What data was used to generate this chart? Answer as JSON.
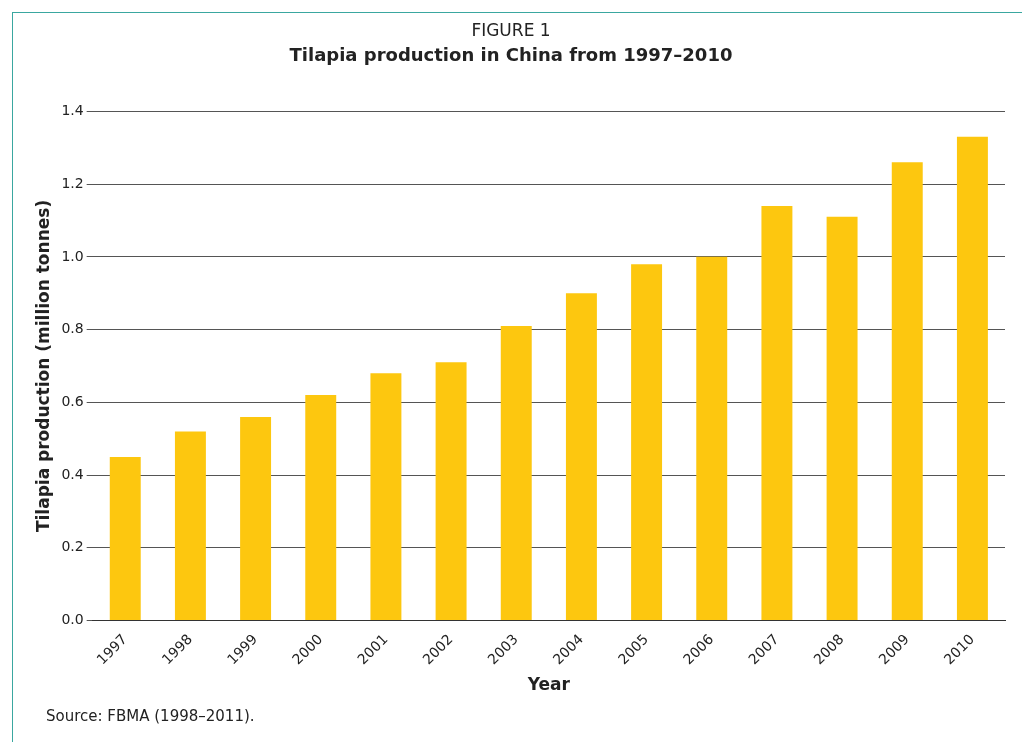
{
  "chart_data": {
    "type": "bar",
    "title": "FIGURE 1",
    "subtitle": "Tilapia production in China from 1997–2010",
    "xlabel": "Year",
    "ylabel": "Tilapia production (million tonnes)",
    "categories": [
      "1997",
      "1998",
      "1999",
      "2000",
      "2001",
      "2002",
      "2003",
      "2004",
      "2005",
      "2006",
      "2007",
      "2008",
      "2009",
      "2010"
    ],
    "values": [
      0.45,
      0.52,
      0.56,
      0.62,
      0.68,
      0.71,
      0.81,
      0.9,
      0.98,
      1.0,
      1.14,
      1.11,
      1.26,
      1.33
    ],
    "color": "#fdc70f",
    "ylim": [
      0,
      1.4
    ],
    "yticks": [
      {
        "value": 0,
        "label": "0.0"
      },
      {
        "value": 0.2,
        "label": "0.2"
      },
      {
        "value": 0.4,
        "label": "0.4"
      },
      {
        "value": 0.6,
        "label": "0.6"
      },
      {
        "value": 0.8,
        "label": "0.8"
      },
      {
        "value": 1.0,
        "label": "1.0"
      },
      {
        "value": 1.2,
        "label": "1.2"
      },
      {
        "value": 1.4,
        "label": "1.4"
      }
    ],
    "grid": "y",
    "legend": false,
    "annotations": [
      "Source: FBMA (1998–2011)."
    ]
  }
}
